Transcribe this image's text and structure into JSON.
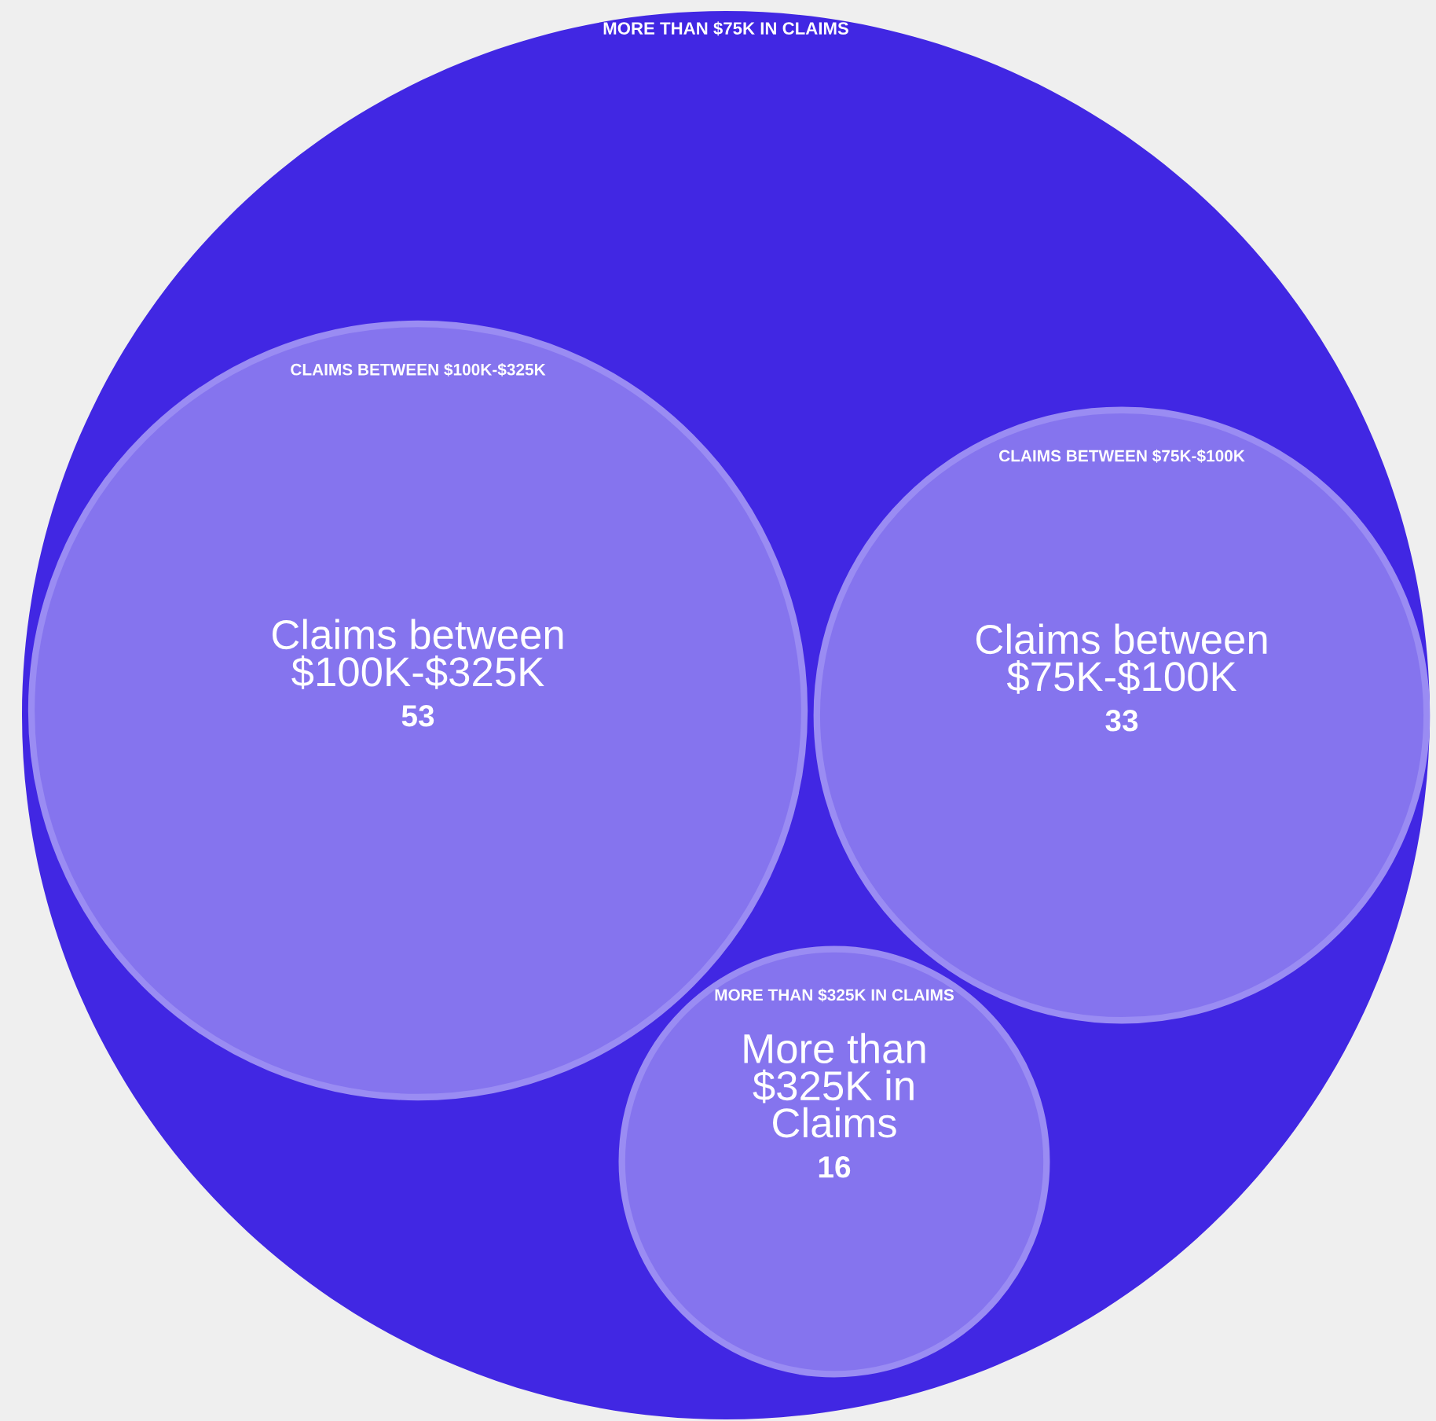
{
  "chart_data": {
    "type": "other",
    "title": "MORE THAN $75K IN CLAIMS",
    "categories": [
      "Claims between\n$100K-$325K",
      "Claims between\n$75K-$100K",
      "More than\n$325K in\nClaims"
    ],
    "values": [
      53,
      33,
      16
    ],
    "annotations": [
      "CLAIMS BETWEEN $100K-$325K",
      "CLAIMS BETWEEN $75K-$100K",
      "MORE THAN $325K IN CLAIMS"
    ],
    "color": "#4127e3",
    "colors": [
      "#8574ee",
      "#8574ee",
      "#8574ee"
    ],
    "data_labels": true
  }
}
